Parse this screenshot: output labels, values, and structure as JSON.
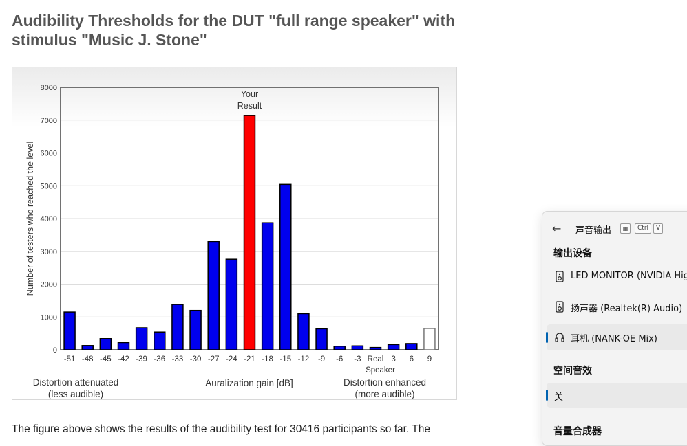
{
  "page": {
    "title": "Audibility Thresholds for the DUT \"full range speaker\" with stimulus \"Music J. Stone\"",
    "description": "The figure above shows the results of the audibility test for 30416 participants so far. The"
  },
  "chart_data": {
    "type": "bar",
    "ylabel": "Number of testers who reached the level",
    "xlabel": "Auralization gain [dB]",
    "ylim": [
      0,
      8000
    ],
    "yticks": [
      "0",
      "1000",
      "2000",
      "3000",
      "4000",
      "5000",
      "6000",
      "7000",
      "8000"
    ],
    "categories": [
      "-51",
      "-48",
      "-45",
      "-42",
      "-39",
      "-36",
      "-33",
      "-30",
      "-27",
      "-24",
      "-21",
      "-18",
      "-15",
      "-12",
      "-9",
      "-6",
      "-3",
      "Real",
      "3",
      "6",
      "9"
    ],
    "category_note": {
      "index": 17,
      "second_line": "Speaker"
    },
    "values": [
      1150,
      130,
      340,
      220,
      670,
      540,
      1380,
      1200,
      3300,
      2760,
      7140,
      3870,
      5040,
      1100,
      640,
      110,
      120,
      70,
      160,
      190,
      650
    ],
    "highlight": {
      "index": 10,
      "label_line1": "Your",
      "label_line2": "Result",
      "color": "#ff0000"
    },
    "outlined_index": 20,
    "bar_color": "#0000ee",
    "grid": true,
    "annotations": {
      "left_line1": "Distortion attenuated",
      "left_line2": "(less audible)",
      "right_line1": "Distortion enhanced",
      "right_line2": "(more audible)"
    }
  },
  "flyout": {
    "title": "声音输出",
    "shortcut": [
      "Ctrl",
      "V"
    ],
    "output_section": "输出设备",
    "devices": [
      {
        "label": "LED MONITOR (NVIDIA High",
        "icon": "speaker-icon"
      },
      {
        "label": "扬声器 (Realtek(R) Audio)",
        "icon": "speaker-icon"
      },
      {
        "label": "耳机 (NANK-OE Mix)",
        "icon": "headphones-icon"
      }
    ],
    "spatial_section": "空间音效",
    "spatial_value": "关",
    "mixer_section": "音量合成器",
    "accent": "#0063b1"
  }
}
